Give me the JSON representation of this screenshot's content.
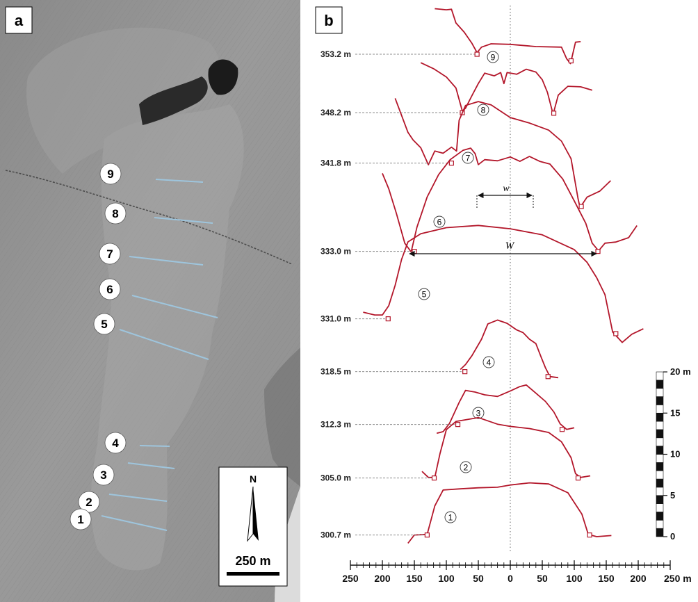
{
  "panel_a": {
    "label": "a",
    "transect_labels": [
      "9",
      "8",
      "7",
      "6",
      "5",
      "4",
      "3",
      "2",
      "1"
    ],
    "north_label": "N",
    "scale_label": "250 m"
  },
  "panel_b": {
    "label": "b",
    "symbols": {
      "w": "w",
      "W": "W"
    }
  },
  "chart_data": {
    "type": "line",
    "title": "",
    "xlabel": "",
    "x_unit": "m",
    "xlim": [
      -250,
      250
    ],
    "x_tick_labels": [
      "250",
      "200",
      "150",
      "100",
      "50",
      "0",
      "50",
      "100",
      "150",
      "200",
      "250 m"
    ],
    "vertical_scale_unit": "m",
    "vertical_scale_ticks": [
      "0",
      "5",
      "10",
      "15",
      "20 m"
    ],
    "series": [
      {
        "name": "9",
        "elevation_label": "353.2 m",
        "points": [
          [
            -118,
            8.8
          ],
          [
            -100,
            8.6
          ],
          [
            -92,
            8.7
          ],
          [
            -85,
            6.2
          ],
          [
            -72,
            4.5
          ],
          [
            -60,
            2.5
          ],
          [
            -52,
            0.8
          ],
          [
            -45,
            1.8
          ],
          [
            -30,
            2.4
          ],
          [
            0,
            2.3
          ],
          [
            40,
            1.9
          ],
          [
            80,
            1.8
          ],
          [
            88,
            -0.3
          ],
          [
            94,
            -1.2
          ],
          [
            97,
            0.2
          ],
          [
            102,
            2.7
          ],
          [
            110,
            2.8
          ]
        ],
        "endpoints": [
          [
            -52,
            0.5
          ],
          [
            95,
            -0.7
          ]
        ]
      },
      {
        "name": "8",
        "elevation_label": "348.2 m",
        "points": [
          [
            -140,
            9.6
          ],
          [
            -120,
            8.5
          ],
          [
            -100,
            7.0
          ],
          [
            -85,
            5.0
          ],
          [
            -75,
            0.8
          ],
          [
            -70,
            1.3
          ],
          [
            -60,
            3.6
          ],
          [
            -50,
            5.8
          ],
          [
            -40,
            7.7
          ],
          [
            -25,
            7.2
          ],
          [
            -15,
            7.8
          ],
          [
            -10,
            5.8
          ],
          [
            -5,
            7.8
          ],
          [
            10,
            7.5
          ],
          [
            25,
            8.4
          ],
          [
            40,
            7.9
          ],
          [
            50,
            6.5
          ],
          [
            58,
            4.2
          ],
          [
            67,
            0.2
          ],
          [
            75,
            3.7
          ],
          [
            90,
            5.3
          ],
          [
            110,
            5.2
          ],
          [
            128,
            4.6
          ]
        ],
        "endpoints": [
          [
            -75,
            0.5
          ],
          [
            68,
            0.4
          ]
        ]
      },
      {
        "name": "7",
        "elevation_label": "341.8 m",
        "points": [
          [
            -180,
            12.1
          ],
          [
            -170,
            9.0
          ],
          [
            -160,
            5.9
          ],
          [
            -152,
            4.5
          ],
          [
            -140,
            3.1
          ],
          [
            -128,
            0.0
          ],
          [
            -118,
            2.5
          ],
          [
            -105,
            2.1
          ],
          [
            -92,
            3.2
          ],
          [
            -84,
            2.5
          ],
          [
            -80,
            8.1
          ],
          [
            -70,
            10.8
          ],
          [
            -50,
            11.5
          ],
          [
            -30,
            10.9
          ],
          [
            0,
            8.6
          ],
          [
            30,
            7.6
          ],
          [
            60,
            6.3
          ],
          [
            80,
            4.3
          ],
          [
            95,
            1.1
          ],
          [
            106,
            -6.2
          ],
          [
            109,
            -7.8
          ],
          [
            120,
            -5.9
          ],
          [
            140,
            -4.8
          ],
          [
            157,
            -2.9
          ]
        ],
        "endpoints": [
          [
            -92,
            0.3
          ],
          [
            111,
            -7.6
          ]
        ]
      },
      {
        "name": "6",
        "elevation_label": "333.0 m",
        "points": [
          [
            -200,
            14.5
          ],
          [
            -190,
            11.7
          ],
          [
            -178,
            7.2
          ],
          [
            -165,
            1.8
          ],
          [
            -155,
            0.2
          ],
          [
            -146,
            4.7
          ],
          [
            -130,
            10.2
          ],
          [
            -112,
            14.3
          ],
          [
            -94,
            17.0
          ],
          [
            -74,
            18.7
          ],
          [
            -62,
            19.1
          ],
          [
            -55,
            18.1
          ],
          [
            -50,
            16.1
          ],
          [
            -40,
            17.0
          ],
          [
            -20,
            16.8
          ],
          [
            0,
            17.5
          ],
          [
            15,
            16.7
          ],
          [
            30,
            17.6
          ],
          [
            46,
            16.7
          ],
          [
            62,
            16.2
          ],
          [
            82,
            13.5
          ],
          [
            100,
            9.5
          ],
          [
            118,
            5.4
          ],
          [
            128,
            1.8
          ],
          [
            138,
            0.4
          ],
          [
            148,
            1.8
          ],
          [
            165,
            2.0
          ],
          [
            185,
            2.8
          ],
          [
            198,
            5.0
          ]
        ],
        "endpoints": [
          [
            -150,
            0.3
          ],
          [
            137,
            0.3
          ]
        ]
      },
      {
        "name": "5",
        "elevation_label": "331.0 m",
        "points": [
          [
            -230,
            1.5
          ],
          [
            -212,
            1.0
          ],
          [
            -200,
            1.0
          ],
          [
            -190,
            2.7
          ],
          [
            -180,
            6.4
          ],
          [
            -170,
            11.1
          ],
          [
            -160,
            14.3
          ],
          [
            -140,
            15.8
          ],
          [
            -100,
            16.9
          ],
          [
            -50,
            17.3
          ],
          [
            0,
            16.7
          ],
          [
            50,
            15.6
          ],
          [
            100,
            12.9
          ],
          [
            120,
            10.6
          ],
          [
            135,
            7.8
          ],
          [
            148,
            4.7
          ],
          [
            160,
            -2.1
          ],
          [
            175,
            -4.0
          ],
          [
            190,
            -2.5
          ],
          [
            208,
            -1.5
          ]
        ],
        "endpoints": [
          [
            -191,
            0.3
          ],
          [
            165,
            -2.4
          ]
        ]
      },
      {
        "name": "4",
        "elevation_label": "318.5 m",
        "points": [
          [
            -78,
            0.7
          ],
          [
            -70,
            1.6
          ],
          [
            -60,
            3.2
          ],
          [
            -45,
            6.2
          ],
          [
            -35,
            9.0
          ],
          [
            -20,
            9.7
          ],
          [
            -5,
            9.1
          ],
          [
            10,
            7.9
          ],
          [
            20,
            7.4
          ],
          [
            30,
            6.2
          ],
          [
            40,
            5.4
          ],
          [
            48,
            3.0
          ],
          [
            55,
            1.0
          ],
          [
            62,
            -0.6
          ],
          [
            75,
            -0.8
          ]
        ],
        "endpoints": [
          [
            -71,
            0.3
          ],
          [
            59,
            -0.6
          ]
        ]
      },
      {
        "name": "3",
        "elevation_label": "312.3 m",
        "points": [
          [
            -115,
            -1.3
          ],
          [
            -105,
            -1.0
          ],
          [
            -95,
            0.5
          ],
          [
            -80,
            4.3
          ],
          [
            -70,
            6.5
          ],
          [
            -55,
            6.2
          ],
          [
            -40,
            5.7
          ],
          [
            -20,
            5.4
          ],
          [
            0,
            6.4
          ],
          [
            15,
            7.2
          ],
          [
            25,
            7.5
          ],
          [
            40,
            6.0
          ],
          [
            55,
            4.5
          ],
          [
            68,
            2.6
          ],
          [
            78,
            0.4
          ],
          [
            88,
            -0.6
          ],
          [
            100,
            -0.3
          ]
        ],
        "endpoints": [
          [
            -82,
            0.3
          ],
          [
            81,
            -0.6
          ]
        ]
      },
      {
        "name": "2",
        "elevation_label": "305.0 m",
        "points": [
          [
            -138,
            1.5
          ],
          [
            -128,
            0.4
          ],
          [
            -118,
            0.4
          ],
          [
            -110,
            4.7
          ],
          [
            -100,
            9.1
          ],
          [
            -85,
            10.6
          ],
          [
            -50,
            11.3
          ],
          [
            -20,
            10.1
          ],
          [
            0,
            9.7
          ],
          [
            30,
            9.3
          ],
          [
            60,
            8.6
          ],
          [
            80,
            6.9
          ],
          [
            95,
            4.0
          ],
          [
            102,
            1.1
          ],
          [
            110,
            0.4
          ],
          [
            125,
            0.7
          ]
        ],
        "endpoints": [
          [
            -119,
            0.3
          ],
          [
            106,
            0.3
          ]
        ]
      },
      {
        "name": "1",
        "elevation_label": "300.7 m",
        "points": [
          [
            -160,
            -1.2
          ],
          [
            -150,
            0.3
          ],
          [
            -130,
            0.4
          ],
          [
            -118,
            5.6
          ],
          [
            -105,
            8.5
          ],
          [
            -80,
            8.7
          ],
          [
            -50,
            8.9
          ],
          [
            -20,
            9.0
          ],
          [
            0,
            9.4
          ],
          [
            30,
            9.8
          ],
          [
            60,
            9.6
          ],
          [
            90,
            8.0
          ],
          [
            112,
            4.1
          ],
          [
            122,
            0.4
          ],
          [
            135,
            0.0
          ],
          [
            158,
            0.2
          ]
        ],
        "endpoints": [
          [
            -130,
            0.3
          ],
          [
            124,
            0.3
          ]
        ]
      }
    ]
  }
}
